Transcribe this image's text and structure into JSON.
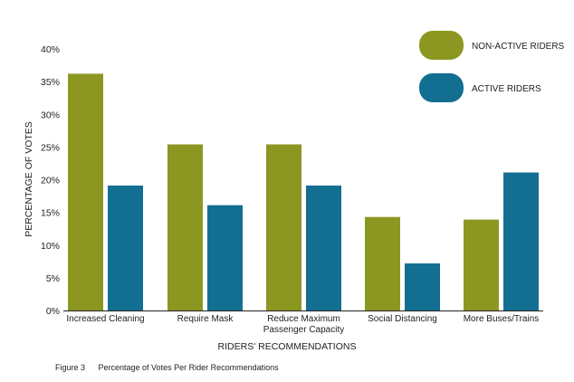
{
  "chart_data": {
    "type": "bar",
    "title": "",
    "xlabel": "RIDERS' RECOMMENDATIONS",
    "ylabel": "PERCENTAGE OF VOTES",
    "ylim": [
      0,
      40
    ],
    "yticks": [
      "0%",
      "5%",
      "10%",
      "15%",
      "20%",
      "25%",
      "30%",
      "35%",
      "40%"
    ],
    "ytick_values": [
      0,
      5,
      10,
      15,
      20,
      25,
      30,
      35,
      40
    ],
    "categories": [
      [
        "Increased Cleaning"
      ],
      [
        "Require Mask"
      ],
      [
        "Reduce Maximum",
        "Passenger Capacity"
      ],
      [
        "Social Distancing"
      ],
      [
        "More Buses/Trains"
      ]
    ],
    "series": [
      {
        "name": "NON-ACTIVE RIDERS",
        "color": "#8c9722",
        "values": [
          36.2,
          25.4,
          25.4,
          14.3,
          13.9
        ]
      },
      {
        "name": "ACTIVE RIDERS",
        "color": "#136f91",
        "values": [
          19.1,
          16.1,
          19.1,
          7.2,
          21.1
        ]
      }
    ],
    "legend_position": "top-right",
    "grid": false
  },
  "caption": {
    "figure": "Figure 3",
    "text": "Percentage of Votes Per Rider Recommendations"
  }
}
